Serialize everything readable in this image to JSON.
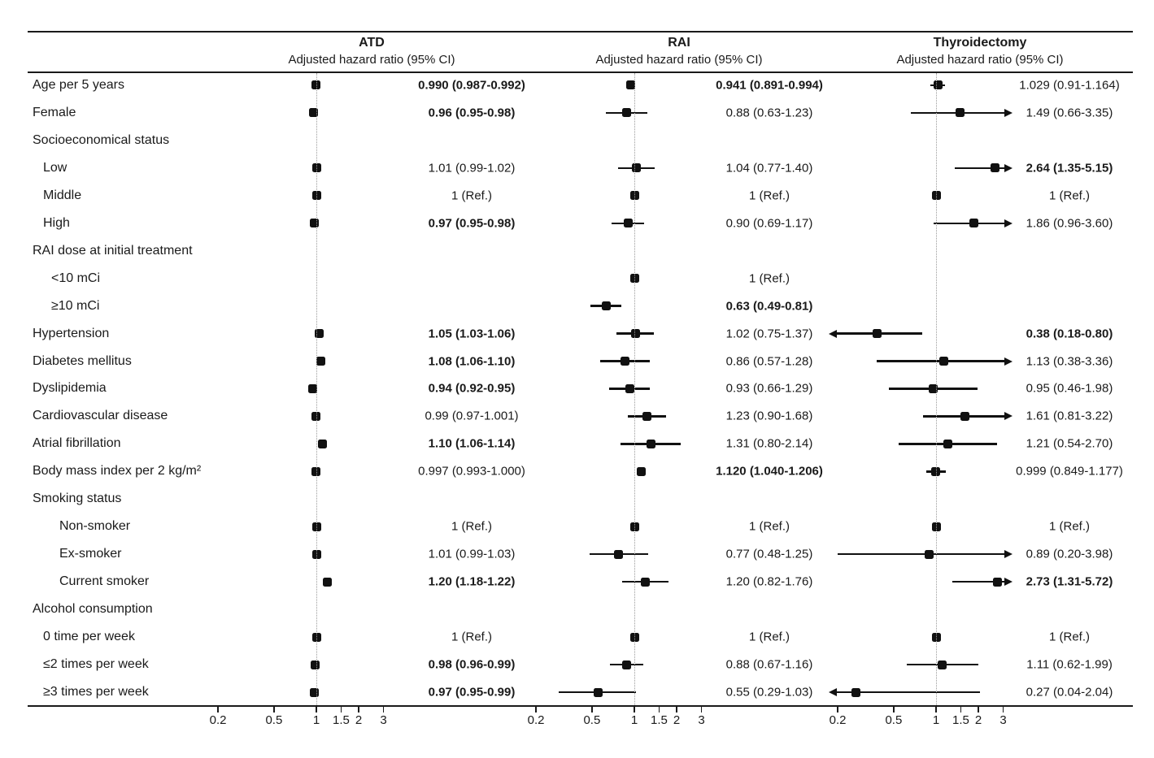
{
  "chart_data": {
    "type": "forest",
    "title": "",
    "scale": "log10",
    "axis_ticks": [
      0.2,
      0.5,
      1,
      1.5,
      2,
      3
    ],
    "axis_range": [
      0.15,
      4.2
    ],
    "reference_value": 1,
    "panels": [
      {
        "key": "atd",
        "name": "ATD",
        "subtitle": "Adjusted hazard ratio (95% CI)"
      },
      {
        "key": "rai",
        "name": "RAI",
        "subtitle": "Adjusted hazard ratio (95% CI)"
      },
      {
        "key": "thy",
        "name": "Thyroidectomy",
        "subtitle": "Adjusted hazard ratio (95% CI)"
      }
    ],
    "ref_text": "1 (Ref.)",
    "rows": [
      {
        "label": "Age per 5 years",
        "indent": 0,
        "group": false,
        "atd": {
          "est": 0.99,
          "lo": 0.987,
          "hi": 0.992,
          "text": "0.990 (0.987-0.992)",
          "bold": true
        },
        "rai": {
          "est": 0.941,
          "lo": 0.891,
          "hi": 0.994,
          "text": "0.941 (0.891-0.994)",
          "bold": true
        },
        "thy": {
          "est": 1.029,
          "lo": 0.91,
          "hi": 1.164,
          "text": "1.029 (0.91-1.164)",
          "bold": false
        }
      },
      {
        "label": "Female",
        "indent": 0,
        "group": false,
        "atd": {
          "est": 0.96,
          "lo": 0.95,
          "hi": 0.98,
          "text": "0.96 (0.95-0.98)",
          "bold": true
        },
        "rai": {
          "est": 0.88,
          "lo": 0.63,
          "hi": 1.23,
          "text": "0.88 (0.63-1.23)",
          "bold": false
        },
        "thy": {
          "est": 1.49,
          "lo": 0.66,
          "hi": 3.35,
          "text": "1.49 (0.66-3.35)",
          "bold": false
        }
      },
      {
        "label": "Socioeconomical status",
        "indent": 0,
        "group": true,
        "atd": null,
        "rai": null,
        "thy": null
      },
      {
        "label": "Low",
        "indent": 1,
        "group": false,
        "atd": {
          "est": 1.01,
          "lo": 0.99,
          "hi": 1.02,
          "text": "1.01 (0.99-1.02)",
          "bold": false
        },
        "rai": {
          "est": 1.04,
          "lo": 0.77,
          "hi": 1.4,
          "text": "1.04 (0.77-1.40)",
          "bold": false
        },
        "thy": {
          "est": 2.64,
          "lo": 1.35,
          "hi": 5.15,
          "text": "2.64 (1.35-5.15)",
          "bold": true
        }
      },
      {
        "label": "Middle",
        "indent": 1,
        "group": false,
        "atd": {
          "est": 1,
          "lo": 1,
          "hi": 1,
          "text": "1 (Ref.)",
          "bold": false
        },
        "rai": {
          "est": 1,
          "lo": 1,
          "hi": 1,
          "text": "1 (Ref.)",
          "bold": false
        },
        "thy": {
          "est": 1,
          "lo": 1,
          "hi": 1,
          "text": "1 (Ref.)",
          "bold": false
        }
      },
      {
        "label": "High",
        "indent": 1,
        "group": false,
        "atd": {
          "est": 0.97,
          "lo": 0.95,
          "hi": 0.98,
          "text": "0.97 (0.95-0.98)",
          "bold": true
        },
        "rai": {
          "est": 0.9,
          "lo": 0.69,
          "hi": 1.17,
          "text": "0.90 (0.69-1.17)",
          "bold": false
        },
        "thy": {
          "est": 1.86,
          "lo": 0.96,
          "hi": 3.6,
          "text": "1.86 (0.96-3.60)",
          "bold": false
        }
      },
      {
        "label": "RAI dose at initial treatment",
        "indent": 0,
        "group": true,
        "atd": null,
        "rai": null,
        "thy": null
      },
      {
        "label": "<10 mCi",
        "indent": 2,
        "group": false,
        "atd": null,
        "rai": {
          "est": 1,
          "lo": 1,
          "hi": 1,
          "text": "1 (Ref.)",
          "bold": false
        },
        "thy": null
      },
      {
        "label": "≥10 mCi",
        "indent": 2,
        "group": false,
        "atd": null,
        "rai": {
          "est": 0.63,
          "lo": 0.49,
          "hi": 0.81,
          "text": "0.63 (0.49-0.81)",
          "bold": true
        },
        "thy": null
      },
      {
        "label": "Hypertension",
        "indent": 0,
        "group": false,
        "atd": {
          "est": 1.05,
          "lo": 1.03,
          "hi": 1.06,
          "text": "1.05 (1.03-1.06)",
          "bold": true
        },
        "rai": {
          "est": 1.02,
          "lo": 0.75,
          "hi": 1.37,
          "text": "1.02 (0.75-1.37)",
          "bold": false
        },
        "thy": {
          "est": 0.38,
          "lo": 0.18,
          "hi": 0.8,
          "text": "0.38 (0.18-0.80)",
          "bold": true
        }
      },
      {
        "label": "Diabetes mellitus",
        "indent": 0,
        "group": false,
        "atd": {
          "est": 1.08,
          "lo": 1.06,
          "hi": 1.1,
          "text": "1.08 (1.06-1.10)",
          "bold": true
        },
        "rai": {
          "est": 0.86,
          "lo": 0.57,
          "hi": 1.28,
          "text": "0.86 (0.57-1.28)",
          "bold": false
        },
        "thy": {
          "est": 1.13,
          "lo": 0.38,
          "hi": 3.36,
          "text": "1.13 (0.38-3.36)",
          "bold": false
        }
      },
      {
        "label": "Dyslipidemia",
        "indent": 0,
        "group": false,
        "atd": {
          "est": 0.94,
          "lo": 0.92,
          "hi": 0.95,
          "text": "0.94 (0.92-0.95)",
          "bold": true
        },
        "rai": {
          "est": 0.93,
          "lo": 0.66,
          "hi": 1.29,
          "text": "0.93 (0.66-1.29)",
          "bold": false
        },
        "thy": {
          "est": 0.95,
          "lo": 0.46,
          "hi": 1.98,
          "text": "0.95 (0.46-1.98)",
          "bold": false
        }
      },
      {
        "label": "Cardiovascular disease",
        "indent": 0,
        "group": false,
        "atd": {
          "est": 0.99,
          "lo": 0.97,
          "hi": 1.001,
          "text": "0.99 (0.97-1.001)",
          "bold": false
        },
        "rai": {
          "est": 1.23,
          "lo": 0.9,
          "hi": 1.68,
          "text": "1.23 (0.90-1.68)",
          "bold": false
        },
        "thy": {
          "est": 1.61,
          "lo": 0.81,
          "hi": 3.22,
          "text": "1.61 (0.81-3.22)",
          "bold": false
        }
      },
      {
        "label": "Atrial fibrillation",
        "indent": 0,
        "group": false,
        "atd": {
          "est": 1.1,
          "lo": 1.06,
          "hi": 1.14,
          "text": "1.10 (1.06-1.14)",
          "bold": true
        },
        "rai": {
          "est": 1.31,
          "lo": 0.8,
          "hi": 2.14,
          "text": "1.31 (0.80-2.14)",
          "bold": false
        },
        "thy": {
          "est": 1.21,
          "lo": 0.54,
          "hi": 2.7,
          "text": "1.21 (0.54-2.70)",
          "bold": false
        }
      },
      {
        "label": "Body mass index per 2 kg/m²",
        "indent": 0,
        "group": false,
        "atd": {
          "est": 0.997,
          "lo": 0.993,
          "hi": 1.0,
          "text": "0.997 (0.993-1.000)",
          "bold": false
        },
        "rai": {
          "est": 1.12,
          "lo": 1.04,
          "hi": 1.206,
          "text": "1.120 (1.040-1.206)",
          "bold": true
        },
        "thy": {
          "est": 0.999,
          "lo": 0.849,
          "hi": 1.177,
          "text": "0.999 (0.849-1.177)",
          "bold": false
        }
      },
      {
        "label": "Smoking status",
        "indent": 0,
        "group": true,
        "atd": null,
        "rai": null,
        "thy": null
      },
      {
        "label": "Non-smoker",
        "indent": 3,
        "group": false,
        "atd": {
          "est": 1,
          "lo": 1,
          "hi": 1,
          "text": "1 (Ref.)",
          "bold": false
        },
        "rai": {
          "est": 1,
          "lo": 1,
          "hi": 1,
          "text": "1 (Ref.)",
          "bold": false
        },
        "thy": {
          "est": 1,
          "lo": 1,
          "hi": 1,
          "text": "1 (Ref.)",
          "bold": false
        }
      },
      {
        "label": "Ex-smoker",
        "indent": 3,
        "group": false,
        "atd": {
          "est": 1.01,
          "lo": 0.99,
          "hi": 1.03,
          "text": "1.01 (0.99-1.03)",
          "bold": false
        },
        "rai": {
          "est": 0.77,
          "lo": 0.48,
          "hi": 1.25,
          "text": "0.77 (0.48-1.25)",
          "bold": false
        },
        "thy": {
          "est": 0.89,
          "lo": 0.2,
          "hi": 3.98,
          "text": "0.89 (0.20-3.98)",
          "bold": false
        }
      },
      {
        "label": "Current smoker",
        "indent": 3,
        "group": false,
        "atd": {
          "est": 1.2,
          "lo": 1.18,
          "hi": 1.22,
          "text": "1.20 (1.18-1.22)",
          "bold": true
        },
        "rai": {
          "est": 1.2,
          "lo": 0.82,
          "hi": 1.76,
          "text": "1.20 (0.82-1.76)",
          "bold": false
        },
        "thy": {
          "est": 2.73,
          "lo": 1.31,
          "hi": 5.72,
          "text": "2.73 (1.31-5.72)",
          "bold": true
        }
      },
      {
        "label": "Alcohol consumption",
        "indent": 0,
        "group": true,
        "atd": null,
        "rai": null,
        "thy": null
      },
      {
        "label": "0 time per week",
        "indent": 1,
        "group": false,
        "atd": {
          "est": 1,
          "lo": 1,
          "hi": 1,
          "text": "1 (Ref.)",
          "bold": false
        },
        "rai": {
          "est": 1,
          "lo": 1,
          "hi": 1,
          "text": "1 (Ref.)",
          "bold": false
        },
        "thy": {
          "est": 1,
          "lo": 1,
          "hi": 1,
          "text": "1 (Ref.)",
          "bold": false
        }
      },
      {
        "label": "≤2 times per week",
        "indent": 1,
        "group": false,
        "atd": {
          "est": 0.98,
          "lo": 0.96,
          "hi": 0.99,
          "text": "0.98 (0.96-0.99)",
          "bold": true
        },
        "rai": {
          "est": 0.88,
          "lo": 0.67,
          "hi": 1.16,
          "text": "0.88 (0.67-1.16)",
          "bold": false
        },
        "thy": {
          "est": 1.11,
          "lo": 0.62,
          "hi": 1.99,
          "text": "1.11 (0.62-1.99)",
          "bold": false
        }
      },
      {
        "label": "≥3 times per week",
        "indent": 1,
        "group": false,
        "atd": {
          "est": 0.97,
          "lo": 0.95,
          "hi": 0.99,
          "text": "0.97 (0.95-0.99)",
          "bold": true
        },
        "rai": {
          "est": 0.55,
          "lo": 0.29,
          "hi": 1.03,
          "text": "0.55 (0.29-1.03)",
          "bold": false
        },
        "thy": {
          "est": 0.27,
          "lo": 0.04,
          "hi": 2.04,
          "text": "0.27 (0.04-2.04)",
          "bold": false
        }
      }
    ]
  }
}
